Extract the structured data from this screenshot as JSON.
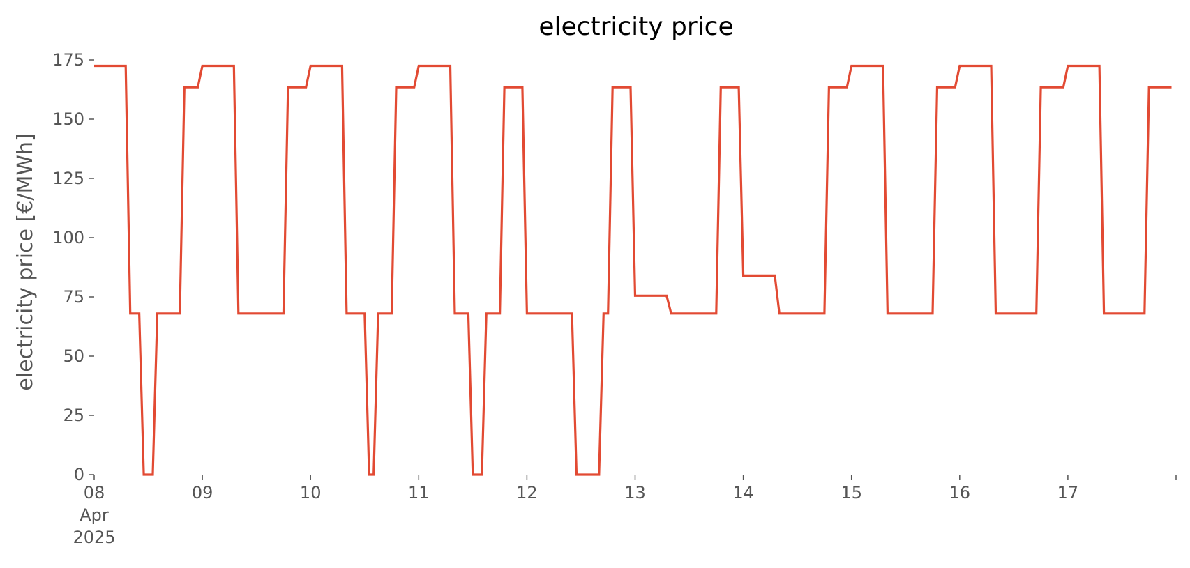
{
  "chart_data": {
    "type": "line",
    "title": "electricity price",
    "xlabel": "",
    "ylabel": "electricity price [€/MWh]",
    "ylim": [
      0,
      175
    ],
    "yticks": [
      0,
      25,
      50,
      75,
      100,
      125,
      150,
      175
    ],
    "xlim": [
      "2025-04-08T00:00",
      "2025-04-18T00:00"
    ],
    "xticks": [
      {
        "date": "2025-04-08",
        "label": [
          "08",
          "Apr",
          "2025"
        ]
      },
      {
        "date": "2025-04-09",
        "label": [
          "09"
        ]
      },
      {
        "date": "2025-04-10",
        "label": [
          "10"
        ]
      },
      {
        "date": "2025-04-11",
        "label": [
          "11"
        ]
      },
      {
        "date": "2025-04-12",
        "label": [
          "12"
        ]
      },
      {
        "date": "2025-04-13",
        "label": [
          "13"
        ]
      },
      {
        "date": "2025-04-14",
        "label": [
          "14"
        ]
      },
      {
        "date": "2025-04-15",
        "label": [
          "15"
        ]
      },
      {
        "date": "2025-04-16",
        "label": [
          "16"
        ]
      },
      {
        "date": "2025-04-17",
        "label": [
          "17"
        ]
      },
      {
        "date": "2025-04-18",
        "label": [
          ""
        ]
      }
    ],
    "grid": false,
    "line_color": "#E24A33",
    "axis_text_color": "#555555",
    "series": [
      {
        "x": [
          "2025-04-08T00:00",
          "2025-04-08T07:00",
          "2025-04-08T08:00",
          "2025-04-08T10:00",
          "2025-04-08T11:00",
          "2025-04-08T13:00",
          "2025-04-08T14:00",
          "2025-04-08T19:00",
          "2025-04-08T20:00",
          "2025-04-08T23:00",
          "2025-04-09T00:00",
          "2025-04-09T07:00",
          "2025-04-09T08:00",
          "2025-04-09T18:00",
          "2025-04-09T19:00",
          "2025-04-09T23:00",
          "2025-04-10T00:00",
          "2025-04-10T07:00",
          "2025-04-10T08:00",
          "2025-04-10T12:00",
          "2025-04-10T13:00",
          "2025-04-10T14:00",
          "2025-04-10T15:00",
          "2025-04-10T18:00",
          "2025-04-10T19:00",
          "2025-04-10T23:00",
          "2025-04-11T00:00",
          "2025-04-11T07:00",
          "2025-04-11T08:00",
          "2025-04-11T11:00",
          "2025-04-11T12:00",
          "2025-04-11T14:00",
          "2025-04-11T15:00",
          "2025-04-11T18:00",
          "2025-04-11T19:00",
          "2025-04-11T23:00",
          "2025-04-12T00:00",
          "2025-04-12T10:00",
          "2025-04-12T11:00",
          "2025-04-12T16:00",
          "2025-04-12T17:00",
          "2025-04-12T18:00",
          "2025-04-12T19:00",
          "2025-04-12T23:00",
          "2025-04-13T00:00",
          "2025-04-13T07:00",
          "2025-04-13T08:00",
          "2025-04-13T18:00",
          "2025-04-13T19:00",
          "2025-04-13T23:00",
          "2025-04-14T00:00",
          "2025-04-14T07:00",
          "2025-04-14T08:00",
          "2025-04-14T18:00",
          "2025-04-14T19:00",
          "2025-04-14T23:00",
          "2025-04-15T00:00",
          "2025-04-15T07:00",
          "2025-04-15T08:00",
          "2025-04-15T18:00",
          "2025-04-15T19:00",
          "2025-04-15T23:00",
          "2025-04-16T00:00",
          "2025-04-16T07:00",
          "2025-04-16T08:00",
          "2025-04-16T17:00",
          "2025-04-16T18:00",
          "2025-04-16T23:00",
          "2025-04-17T00:00",
          "2025-04-17T07:00",
          "2025-04-17T08:00",
          "2025-04-17T17:00",
          "2025-04-17T18:00",
          "2025-04-17T23:00"
        ],
        "y": [
          172.5,
          172.5,
          68,
          68,
          0,
          0,
          68,
          68,
          163.5,
          163.5,
          172.5,
          172.5,
          68,
          68,
          163.5,
          163.5,
          172.5,
          172.5,
          68,
          68,
          0,
          0,
          68,
          68,
          163.5,
          163.5,
          172.5,
          172.5,
          68,
          68,
          0,
          0,
          68,
          68,
          163.5,
          163.5,
          68,
          68,
          0,
          0,
          68,
          68,
          163.5,
          163.5,
          75.5,
          75.5,
          68,
          68,
          163.5,
          163.5,
          84,
          84,
          68,
          68,
          163.5,
          163.5,
          172.5,
          172.5,
          68,
          68,
          163.5,
          163.5,
          172.5,
          172.5,
          68,
          68,
          163.5,
          163.5,
          172.5,
          172.5,
          68,
          68,
          163.5,
          163.5
        ]
      }
    ]
  }
}
